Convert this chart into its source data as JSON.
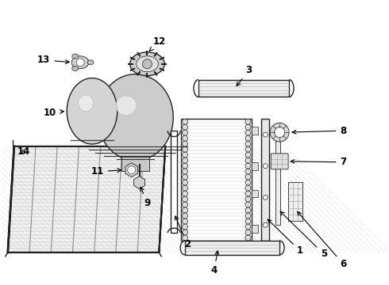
{
  "bg_color": "#ffffff",
  "line_color": "#222222",
  "label_color": "#000000",
  "label_fs": 8.5,
  "lw_main": 1.0,
  "lw_thin": 0.6,
  "lw_thick": 1.5
}
